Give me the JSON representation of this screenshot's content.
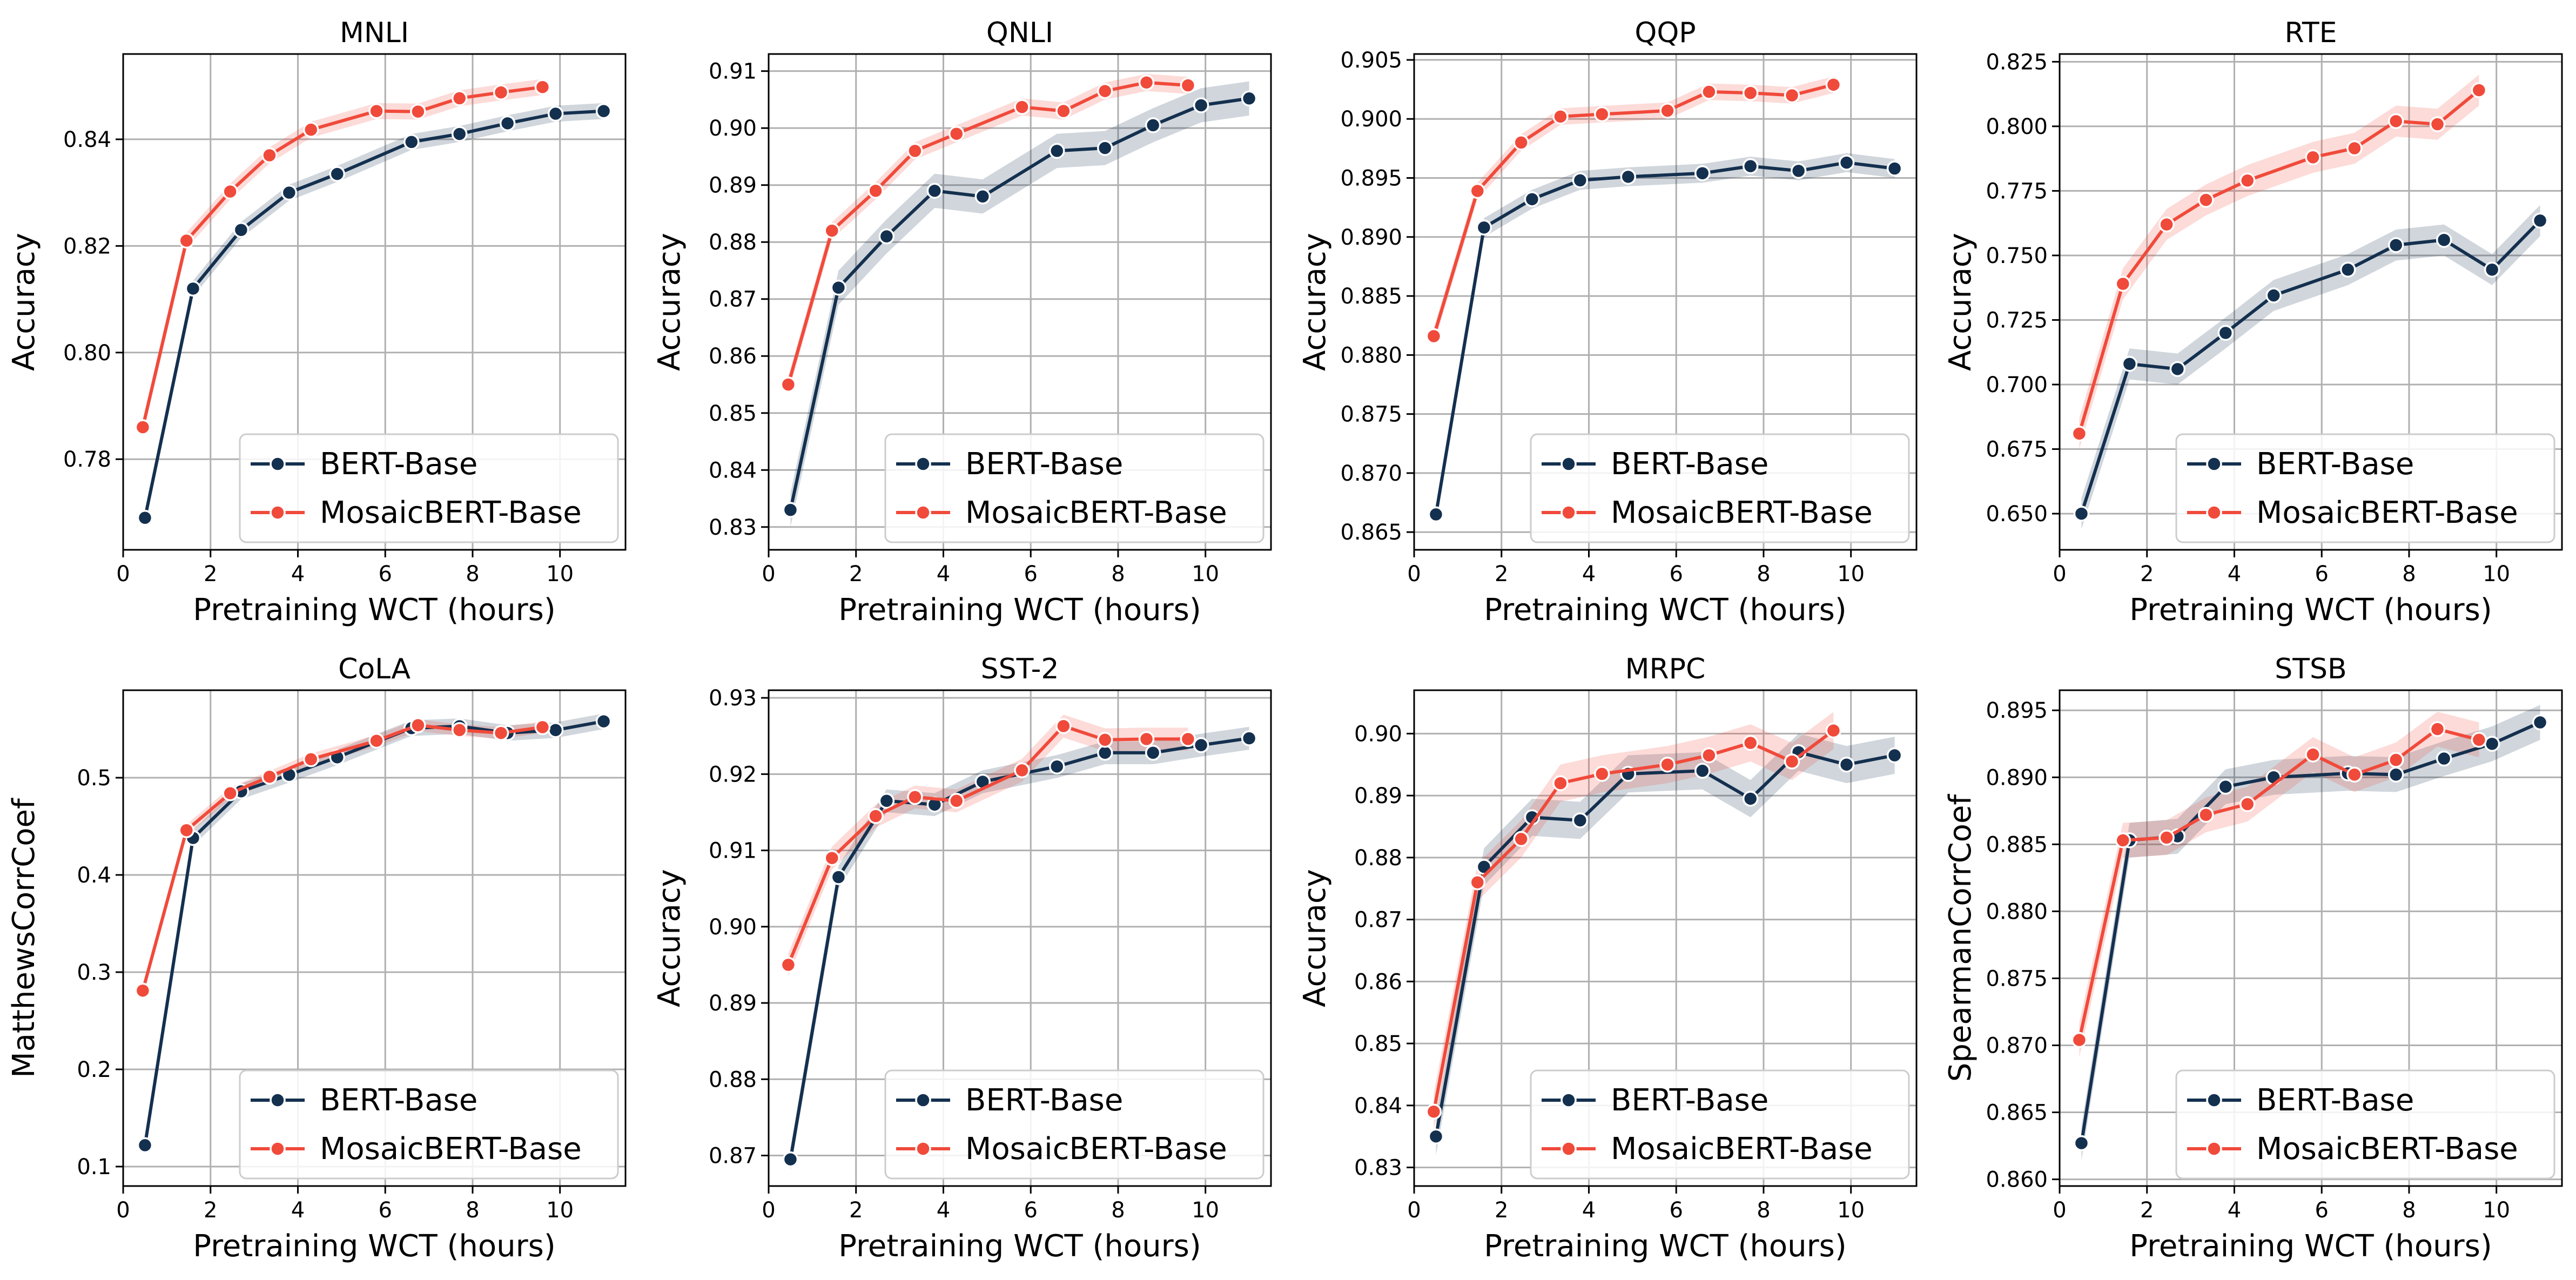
{
  "colors": {
    "bert": "#14304f",
    "mosaic": "#f04a3b"
  },
  "xlabel": "Pretraining WCT (hours)",
  "chart_data": [
    {
      "type": "line",
      "title": "MNLI",
      "ylabel": "Accuracy",
      "xlim": [
        0,
        11.5
      ],
      "ylim": [
        0.763,
        0.856
      ],
      "xticks": [
        0,
        2,
        4,
        6,
        8,
        10
      ],
      "yticks": [
        0.78,
        0.8,
        0.82,
        0.84
      ],
      "ytick_labels": [
        "0.78",
        "0.80",
        "0.82",
        "0.84"
      ],
      "legend": "lower-right",
      "series": [
        {
          "name": "BERT-Base",
          "band": 0.0015,
          "x": [
            0.5,
            1.6,
            2.7,
            3.8,
            4.9,
            6.6,
            7.7,
            8.8,
            9.9,
            11.0
          ],
          "y": [
            0.769,
            0.812,
            0.823,
            0.83,
            0.8335,
            0.8395,
            0.841,
            0.843,
            0.8448,
            0.8453
          ]
        },
        {
          "name": "MosaicBERT-Base",
          "band": 0.0015,
          "x": [
            0.45,
            1.45,
            2.45,
            3.35,
            4.3,
            5.8,
            6.75,
            7.7,
            8.65,
            9.6
          ],
          "y": [
            0.786,
            0.821,
            0.8302,
            0.837,
            0.8418,
            0.8453,
            0.8452,
            0.8477,
            0.8488,
            0.8498
          ]
        }
      ]
    },
    {
      "type": "line",
      "title": "QNLI",
      "ylabel": "Accuracy",
      "xlim": [
        0,
        11.5
      ],
      "ylim": [
        0.826,
        0.913
      ],
      "xticks": [
        0,
        2,
        4,
        6,
        8,
        10
      ],
      "yticks": [
        0.83,
        0.84,
        0.85,
        0.86,
        0.87,
        0.88,
        0.89,
        0.9,
        0.91
      ],
      "ytick_labels": [
        "0.83",
        "0.84",
        "0.85",
        "0.86",
        "0.87",
        "0.88",
        "0.89",
        "0.90",
        "0.91"
      ],
      "legend": "lower-right",
      "series": [
        {
          "name": "BERT-Base",
          "band": 0.003,
          "x": [
            0.5,
            1.6,
            2.7,
            3.8,
            4.9,
            6.6,
            7.7,
            8.8,
            9.9,
            11.0
          ],
          "y": [
            0.833,
            0.872,
            0.881,
            0.889,
            0.888,
            0.896,
            0.8965,
            0.9005,
            0.904,
            0.9052
          ]
        },
        {
          "name": "MosaicBERT-Base",
          "band": 0.0015,
          "x": [
            0.45,
            1.45,
            2.45,
            3.35,
            4.3,
            5.8,
            6.75,
            7.7,
            8.65,
            9.6
          ],
          "y": [
            0.855,
            0.882,
            0.889,
            0.896,
            0.899,
            0.9037,
            0.903,
            0.9065,
            0.908,
            0.9075
          ]
        }
      ]
    },
    {
      "type": "line",
      "title": "QQP",
      "ylabel": "Accuracy",
      "xlim": [
        0,
        11.5
      ],
      "ylim": [
        0.8635,
        0.9055
      ],
      "xticks": [
        0,
        2,
        4,
        6,
        8,
        10
      ],
      "yticks": [
        0.865,
        0.87,
        0.875,
        0.88,
        0.885,
        0.89,
        0.895,
        0.9,
        0.905
      ],
      "ytick_labels": [
        "0.865",
        "0.870",
        "0.875",
        "0.880",
        "0.885",
        "0.890",
        "0.895",
        "0.900",
        "0.905"
      ],
      "legend": "lower-right",
      "series": [
        {
          "name": "BERT-Base",
          "band": 0.0008,
          "x": [
            0.5,
            1.6,
            2.7,
            3.8,
            4.9,
            6.6,
            7.7,
            8.8,
            9.9,
            11.0
          ],
          "y": [
            0.8665,
            0.8908,
            0.8932,
            0.8948,
            0.8951,
            0.8954,
            0.896,
            0.8956,
            0.8963,
            0.8958
          ]
        },
        {
          "name": "MosaicBERT-Base",
          "band": 0.0007,
          "x": [
            0.45,
            1.45,
            2.45,
            3.35,
            4.3,
            5.8,
            6.75,
            7.7,
            8.65,
            9.6
          ],
          "y": [
            0.8816,
            0.8939,
            0.898,
            0.9002,
            0.9004,
            0.9007,
            0.9023,
            0.9022,
            0.902,
            0.9029
          ]
        }
      ]
    },
    {
      "type": "line",
      "title": "RTE",
      "ylabel": "Accuracy",
      "xlim": [
        0,
        11.5
      ],
      "ylim": [
        0.636,
        0.828
      ],
      "xticks": [
        0,
        2,
        4,
        6,
        8,
        10
      ],
      "yticks": [
        0.65,
        0.675,
        0.7,
        0.725,
        0.75,
        0.775,
        0.8,
        0.825
      ],
      "ytick_labels": [
        "0.650",
        "0.675",
        "0.700",
        "0.725",
        "0.750",
        "0.775",
        "0.800",
        "0.825"
      ],
      "legend": "lower-right",
      "series": [
        {
          "name": "BERT-Base",
          "band": 0.006,
          "x": [
            0.5,
            1.6,
            2.7,
            3.8,
            4.9,
            6.6,
            7.7,
            8.8,
            9.9,
            11.0
          ],
          "y": [
            0.65,
            0.708,
            0.706,
            0.72,
            0.7345,
            0.7445,
            0.754,
            0.756,
            0.7445,
            0.7635
          ]
        },
        {
          "name": "MosaicBERT-Base",
          "band": 0.006,
          "x": [
            0.45,
            1.45,
            2.45,
            3.35,
            4.3,
            5.8,
            6.75,
            7.7,
            8.65,
            9.6
          ],
          "y": [
            0.681,
            0.739,
            0.762,
            0.7715,
            0.779,
            0.788,
            0.7915,
            0.802,
            0.8008,
            0.814
          ]
        }
      ]
    },
    {
      "type": "line",
      "title": "CoLA",
      "ylabel": "MatthewsCorrCoef",
      "xlim": [
        0,
        11.5
      ],
      "ylim": [
        0.08,
        0.59
      ],
      "xticks": [
        0,
        2,
        4,
        6,
        8,
        10
      ],
      "yticks": [
        0.1,
        0.2,
        0.3,
        0.4,
        0.5
      ],
      "ytick_labels": [
        "0.1",
        "0.2",
        "0.3",
        "0.4",
        "0.5"
      ],
      "legend": "lower-right",
      "series": [
        {
          "name": "BERT-Base",
          "band": 0.008,
          "x": [
            0.5,
            1.6,
            2.7,
            3.8,
            4.9,
            6.6,
            7.7,
            8.8,
            9.9,
            11.0
          ],
          "y": [
            0.122,
            0.438,
            0.486,
            0.503,
            0.521,
            0.551,
            0.553,
            0.546,
            0.549,
            0.558
          ]
        },
        {
          "name": "MosaicBERT-Base",
          "band": 0.006,
          "x": [
            0.45,
            1.45,
            2.45,
            3.35,
            4.3,
            5.8,
            6.75,
            7.7,
            8.65,
            9.6
          ],
          "y": [
            0.281,
            0.446,
            0.484,
            0.501,
            0.519,
            0.538,
            0.554,
            0.549,
            0.546,
            0.552
          ]
        }
      ]
    },
    {
      "type": "line",
      "title": "SST-2",
      "ylabel": "Accuracy",
      "xlim": [
        0,
        11.5
      ],
      "ylim": [
        0.866,
        0.931
      ],
      "xticks": [
        0,
        2,
        4,
        6,
        8,
        10
      ],
      "yticks": [
        0.87,
        0.88,
        0.89,
        0.9,
        0.91,
        0.92,
        0.93
      ],
      "ytick_labels": [
        "0.87",
        "0.88",
        "0.89",
        "0.90",
        "0.91",
        "0.92",
        "0.93"
      ],
      "legend": "lower-right",
      "series": [
        {
          "name": "BERT-Base",
          "band": 0.0015,
          "x": [
            0.5,
            1.6,
            2.7,
            3.8,
            4.9,
            6.6,
            7.7,
            8.8,
            9.9,
            11.0
          ],
          "y": [
            0.8695,
            0.9065,
            0.9165,
            0.916,
            0.919,
            0.921,
            0.9228,
            0.9228,
            0.9238,
            0.9247
          ]
        },
        {
          "name": "MosaicBERT-Base",
          "band": 0.0015,
          "x": [
            0.45,
            1.45,
            2.45,
            3.35,
            4.3,
            5.8,
            6.75,
            7.7,
            8.65,
            9.6
          ],
          "y": [
            0.895,
            0.909,
            0.9145,
            0.917,
            0.9165,
            0.9205,
            0.9263,
            0.9245,
            0.9246,
            0.9246
          ]
        }
      ]
    },
    {
      "type": "line",
      "title": "MRPC",
      "ylabel": "Accuracy",
      "xlim": [
        0,
        11.5
      ],
      "ylim": [
        0.827,
        0.907
      ],
      "xticks": [
        0,
        2,
        4,
        6,
        8,
        10
      ],
      "yticks": [
        0.83,
        0.84,
        0.85,
        0.86,
        0.87,
        0.88,
        0.89,
        0.9
      ],
      "ytick_labels": [
        "0.83",
        "0.84",
        "0.85",
        "0.86",
        "0.87",
        "0.88",
        "0.89",
        "0.90"
      ],
      "legend": "lower-right",
      "series": [
        {
          "name": "BERT-Base",
          "band": 0.003,
          "x": [
            0.5,
            1.6,
            2.7,
            3.8,
            4.9,
            6.6,
            7.7,
            8.8,
            9.9,
            11.0
          ],
          "y": [
            0.835,
            0.8785,
            0.8865,
            0.886,
            0.8935,
            0.894,
            0.8895,
            0.897,
            0.895,
            0.8965
          ]
        },
        {
          "name": "MosaicBERT-Base",
          "band": 0.003,
          "x": [
            0.45,
            1.45,
            2.45,
            3.35,
            4.3,
            5.8,
            6.75,
            7.7,
            8.65,
            9.6
          ],
          "y": [
            0.839,
            0.876,
            0.883,
            0.892,
            0.8935,
            0.895,
            0.8965,
            0.8985,
            0.8955,
            0.9005
          ]
        }
      ]
    },
    {
      "type": "line",
      "title": "STSB",
      "ylabel": "SpearmanCorrCoef",
      "xlim": [
        0,
        11.5
      ],
      "ylim": [
        0.8595,
        0.8965
      ],
      "xticks": [
        0,
        2,
        4,
        6,
        8,
        10
      ],
      "yticks": [
        0.86,
        0.865,
        0.87,
        0.875,
        0.88,
        0.885,
        0.89,
        0.895
      ],
      "ytick_labels": [
        "0.860",
        "0.865",
        "0.870",
        "0.875",
        "0.880",
        "0.885",
        "0.890",
        "0.895"
      ],
      "legend": "lower-right",
      "series": [
        {
          "name": "BERT-Base",
          "band": 0.0013,
          "x": [
            0.5,
            1.6,
            2.7,
            3.8,
            4.9,
            6.6,
            7.7,
            8.8,
            9.9,
            11.0
          ],
          "y": [
            0.8627,
            0.8853,
            0.8856,
            0.8893,
            0.89,
            0.8903,
            0.8902,
            0.8914,
            0.8925,
            0.8941
          ]
        },
        {
          "name": "MosaicBERT-Base",
          "band": 0.0013,
          "x": [
            0.45,
            1.45,
            2.45,
            3.35,
            4.3,
            5.8,
            6.75,
            7.7,
            8.65,
            9.6
          ],
          "y": [
            0.8704,
            0.8853,
            0.8855,
            0.8872,
            0.888,
            0.8917,
            0.8902,
            0.8913,
            0.8936,
            0.8928
          ]
        }
      ]
    }
  ]
}
